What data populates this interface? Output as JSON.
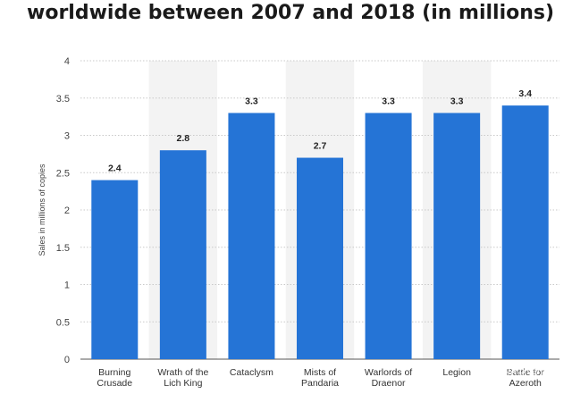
{
  "title": "worldwide between 2007 and 2018 (in millions)",
  "watermark": "@悟空问答",
  "colors": {
    "bar": "#2574d6",
    "band": "#f3f3f3",
    "grid": "#c9c9c9",
    "baseline": "#555555"
  },
  "chart_data": {
    "type": "bar",
    "categories": [
      [
        "Burning",
        "Crusade"
      ],
      [
        "Wrath of the",
        "Lich King"
      ],
      [
        "Cataclysm"
      ],
      [
        "Mists of",
        "Pandaria"
      ],
      [
        "Warlords of",
        "Draenor"
      ],
      [
        "Legion"
      ],
      [
        "Battle for",
        "Azeroth"
      ]
    ],
    "values": [
      2.4,
      2.8,
      3.3,
      2.7,
      3.3,
      3.3,
      3.4
    ],
    "value_labels": [
      "2.4",
      "2.8",
      "3.3",
      "2.7",
      "3.3",
      "3.3",
      "3.4"
    ],
    "ylabel": "Sales in millions of copies",
    "ylim": [
      0,
      4
    ],
    "yticks": [
      "0",
      "0.5",
      "1",
      "1.5",
      "2",
      "2.5",
      "3",
      "3.5",
      "4"
    ],
    "grid": true,
    "alternating_bands": true
  }
}
